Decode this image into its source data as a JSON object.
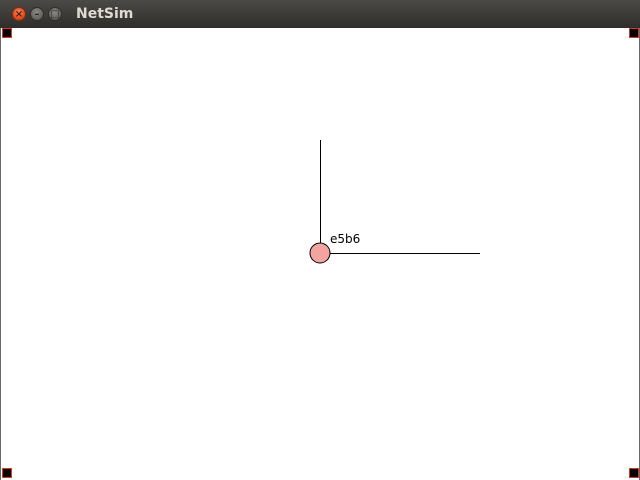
{
  "window": {
    "title": "NetSim",
    "controls": {
      "close_glyph": "×",
      "minimize_glyph": "–",
      "maximize_glyph": "□"
    }
  },
  "network": {
    "nodes": [
      {
        "id": "e5b6",
        "label": "e5b6",
        "fill": "#f4a4a0",
        "stroke": "#000000"
      }
    ]
  },
  "colors": {
    "titlebar": "#3a3935",
    "close_button": "#de4a1c",
    "handle_fill": "#000000",
    "handle_border": "#d03a2a",
    "link_stroke": "#000000"
  }
}
